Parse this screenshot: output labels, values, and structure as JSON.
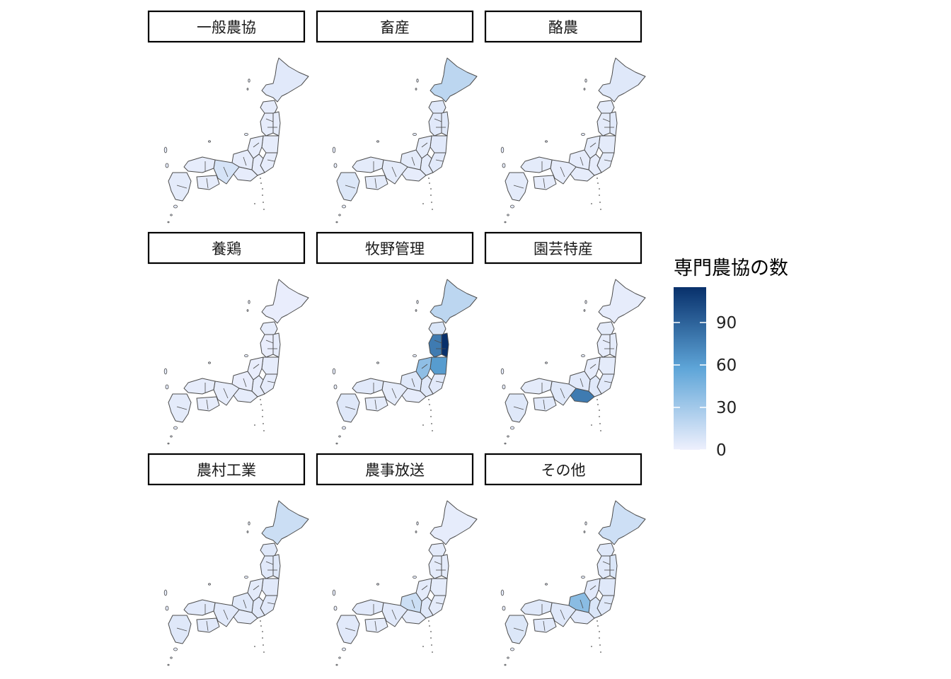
{
  "legend": {
    "title": "専門農協の数",
    "min": 0,
    "max": 115,
    "ticks": [
      0,
      30,
      60,
      90
    ],
    "colors": {
      "low": "#eef0fd",
      "mid": "#5ea5d8",
      "high": "#08306b"
    }
  },
  "panels": [
    {
      "label": "一般農協",
      "regions": {
        "hokkaido": 5,
        "tohoku_north": 3,
        "tohoku_west": 3,
        "tohoku_east": 3,
        "fukushima": 3,
        "hokuriku": 3,
        "kanto": 3,
        "kanto_west": 3,
        "tokai": 3,
        "chubu": 3,
        "kansai": 10,
        "chugoku": 3,
        "shikoku": 3,
        "kyushu": 4
      }
    },
    {
      "label": "畜産",
      "regions": {
        "hokkaido": 20,
        "tohoku_north": 6,
        "tohoku_west": 5,
        "tohoku_east": 6,
        "fukushima": 5,
        "hokuriku": 4,
        "kanto": 5,
        "kanto_west": 4,
        "tokai": 3,
        "chubu": 4,
        "kansai": 4,
        "chugoku": 4,
        "shikoku": 4,
        "kyushu": 7
      }
    },
    {
      "label": "酪農",
      "regions": {
        "hokkaido": 6,
        "tohoku_north": 4,
        "tohoku_west": 4,
        "tohoku_east": 5,
        "fukushima": 4,
        "hokuriku": 4,
        "kanto": 4,
        "kanto_west": 3,
        "tokai": 3,
        "chubu": 3,
        "kansai": 3,
        "chugoku": 4,
        "shikoku": 3,
        "kyushu": 4
      }
    },
    {
      "label": "養鶏",
      "regions": {
        "hokkaido": 2,
        "tohoku_north": 3,
        "tohoku_west": 2,
        "tohoku_east": 3,
        "fukushima": 3,
        "hokuriku": 2,
        "kanto": 3,
        "kanto_west": 3,
        "tokai": 3,
        "chubu": 2,
        "kansai": 3,
        "chugoku": 3,
        "shikoku": 3,
        "kyushu": 4
      }
    },
    {
      "label": "牧野管理",
      "regions": {
        "hokkaido": 20,
        "tohoku_north": 8,
        "tohoku_west": 78,
        "tohoku_east": 115,
        "fukushima": 62,
        "hokuriku": 38,
        "kanto": 5,
        "kanto_west": 6,
        "tokai": 3,
        "chubu": 6,
        "kansai": 4,
        "chugoku": 5,
        "shikoku": 4,
        "kyushu": 6
      }
    },
    {
      "label": "園芸特産",
      "regions": {
        "hokkaido": 3,
        "tohoku_north": 4,
        "tohoku_west": 3,
        "tohoku_east": 4,
        "fukushima": 4,
        "hokuriku": 3,
        "kanto": 5,
        "kanto_west": 6,
        "tokai": 78,
        "chubu": 5,
        "kansai": 6,
        "chugoku": 4,
        "shikoku": 5,
        "kyushu": 6
      }
    },
    {
      "label": "農村工業",
      "regions": {
        "hokkaido": 14,
        "tohoku_north": 6,
        "tohoku_west": 5,
        "tohoku_east": 6,
        "fukushima": 5,
        "hokuriku": 4,
        "kanto": 5,
        "kanto_west": 5,
        "tokai": 4,
        "chubu": 6,
        "kansai": 5,
        "chugoku": 5,
        "shikoku": 5,
        "kyushu": 6
      }
    },
    {
      "label": "農事放送",
      "regions": {
        "hokkaido": 3,
        "tohoku_north": 4,
        "tohoku_west": 4,
        "tohoku_east": 4,
        "fukushima": 4,
        "hokuriku": 4,
        "kanto": 4,
        "kanto_west": 6,
        "tokai": 4,
        "chubu": 14,
        "kansai": 5,
        "chugoku": 5,
        "shikoku": 4,
        "kyushu": 5
      }
    },
    {
      "label": "その他",
      "regions": {
        "hokkaido": 13,
        "tohoku_north": 6,
        "tohoku_west": 5,
        "tohoku_east": 8,
        "fukushima": 6,
        "hokuriku": 5,
        "kanto": 6,
        "kanto_west": 8,
        "tokai": 5,
        "chubu": 40,
        "kansai": 6,
        "chugoku": 6,
        "shikoku": 5,
        "kyushu": 7
      }
    }
  ]
}
